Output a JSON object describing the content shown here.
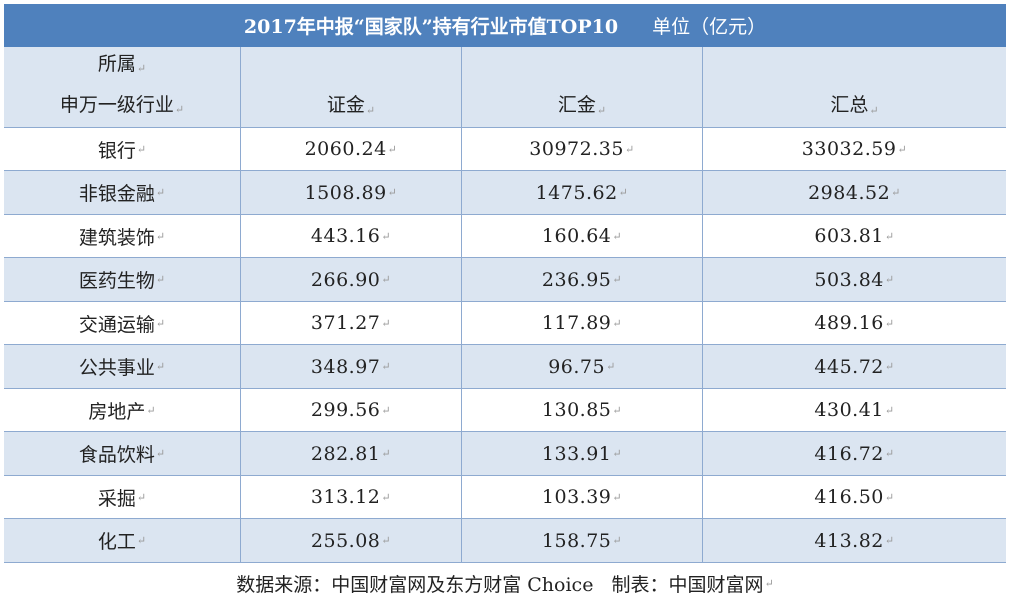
{
  "title": "2017年中报“国家队”持有行业市值TOP10",
  "unit": "单位（亿元）",
  "headers": {
    "industry_line1": "所属",
    "industry_line2": "申万一级行业",
    "col1": "证金",
    "col2": "汇金",
    "col3": "汇总"
  },
  "rows": [
    {
      "industry": "银行",
      "zhengjin": "2060.24",
      "huijin": "30972.35",
      "total": "33032.59"
    },
    {
      "industry": "非银金融",
      "zhengjin": "1508.89",
      "huijin": "1475.62",
      "total": "2984.52"
    },
    {
      "industry": "建筑装饰",
      "zhengjin": "443.16",
      "huijin": "160.64",
      "total": "603.81"
    },
    {
      "industry": "医药生物",
      "zhengjin": "266.90",
      "huijin": "236.95",
      "total": "503.84"
    },
    {
      "industry": "交通运输",
      "zhengjin": "371.27",
      "huijin": "117.89",
      "total": "489.16"
    },
    {
      "industry": "公共事业",
      "zhengjin": "348.97",
      "huijin": "96.75",
      "total": "445.72"
    },
    {
      "industry": "房地产",
      "zhengjin": "299.56",
      "huijin": "130.85",
      "total": "430.41"
    },
    {
      "industry": "食品饮料",
      "zhengjin": "282.81",
      "huijin": "133.91",
      "total": "416.72"
    },
    {
      "industry": "采掘",
      "zhengjin": "313.12",
      "huijin": "103.39",
      "total": "416.50"
    },
    {
      "industry": "化工",
      "zhengjin": "255.08",
      "huijin": "158.75",
      "total": "413.82"
    }
  ],
  "footer": "数据来源：中国财富网及东方财富 Choice   制表：中国财富网",
  "colors": {
    "title_bg": "#4f81bd",
    "band": "#dbe5f1",
    "grid": "#8eaad0"
  }
}
